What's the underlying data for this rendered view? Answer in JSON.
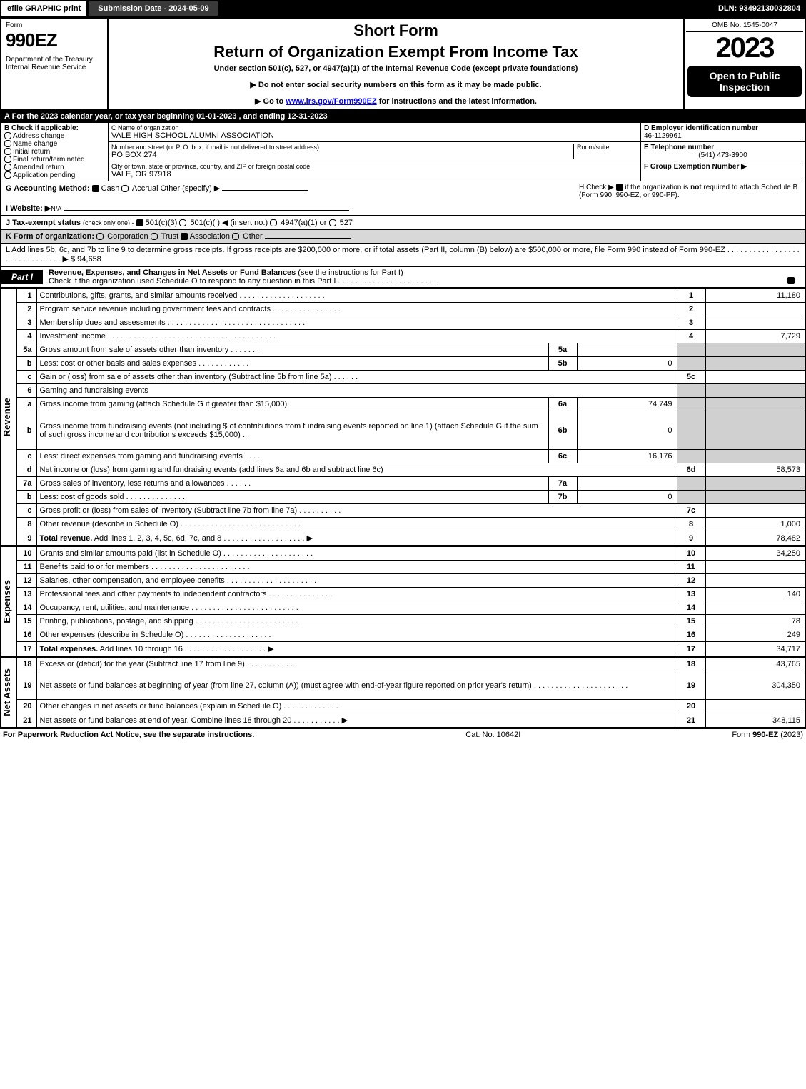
{
  "topbar": {
    "efile": "efile GRAPHIC print",
    "subdate": "Submission Date - 2024-05-09",
    "dln": "DLN: 93492130032804"
  },
  "header": {
    "form_label": "Form",
    "form_number": "990EZ",
    "dept": "Department of the Treasury\nInternal Revenue Service",
    "short_form": "Short Form",
    "title": "Return of Organization Exempt From Income Tax",
    "subtitle": "Under section 501(c), 527, or 4947(a)(1) of the Internal Revenue Code (except private foundations)",
    "arrow1": "▶ Do not enter social security numbers on this form as it may be made public.",
    "arrow2_pre": "▶ Go to ",
    "arrow2_link": "www.irs.gov/Form990EZ",
    "arrow2_post": " for instructions and the latest information.",
    "omb": "OMB No. 1545-0047",
    "year": "2023",
    "open": "Open to Public Inspection"
  },
  "sectionA": "A  For the 2023 calendar year, or tax year beginning 01-01-2023 , and ending 12-31-2023",
  "sectionB": {
    "hdr": "B  Check if applicable:",
    "items": [
      "Address change",
      "Name change",
      "Initial return",
      "Final return/terminated",
      "Amended return",
      "Application pending"
    ]
  },
  "sectionC": {
    "name_lbl": "C Name of organization",
    "name_val": "VALE HIGH SCHOOL ALUMNI ASSOCIATION",
    "street_lbl": "Number and street (or P. O. box, if mail is not delivered to street address)",
    "room_lbl": "Room/suite",
    "street_val": "PO BOX 274",
    "city_lbl": "City or town, state or province, country, and ZIP or foreign postal code",
    "city_val": "VALE, OR  97918"
  },
  "sectionD": {
    "ein_lbl": "D Employer identification number",
    "ein_val": "46-1129961",
    "tel_lbl": "E Telephone number",
    "tel_val": "(541) 473-3900",
    "grp_lbl": "F Group Exemption Number  ▶"
  },
  "lineG": {
    "label": "G Accounting Method:",
    "cash": "Cash",
    "accrual": "Accrual",
    "other": "Other (specify) ▶"
  },
  "lineH": {
    "text1": "H  Check ▶ ",
    "text2": " if the organization is ",
    "not": "not",
    "text3": " required to attach Schedule B",
    "text4": "(Form 990, 990-EZ, or 990-PF)."
  },
  "lineI": {
    "label": "I Website: ▶",
    "val": "N/A"
  },
  "lineJ": {
    "label": "J Tax-exempt status",
    "sub": "(check only one) -",
    "o1": "501(c)(3)",
    "o2": "501(c)(  ) ◀ (insert no.)",
    "o3": "4947(a)(1) or",
    "o4": "527"
  },
  "lineK": {
    "label": "K Form of organization:",
    "opts": [
      "Corporation",
      "Trust",
      "Association",
      "Other"
    ]
  },
  "lineL": {
    "text1": "L Add lines 5b, 6c, and 7b to line 9 to determine gross receipts. If gross receipts are $200,000 or more, or if total assets (Part II, column (B) below) are $500,000 or more, file Form 990 instead of Form 990-EZ",
    "dots": ". . . . . . . . . . . . . . . . . . . . . . . . . . . . . . ▶ $",
    "val": "94,658"
  },
  "partI": {
    "num": "Part I",
    "title": "Revenue, Expenses, and Changes in Net Assets or Fund Balances",
    "paren": "(see the instructions for Part I)",
    "check": "Check if the organization used Schedule O to respond to any question in this Part I . . . . . . . . . . . . . . . . . . . . . . ."
  },
  "vert": {
    "rev": "Revenue",
    "exp": "Expenses",
    "na": "Net Assets"
  },
  "rows": [
    {
      "n": "1",
      "d": "Contributions, gifts, grants, and similar amounts received . . . . . . . . . . . . . . . . . . . .",
      "rn": "1",
      "amt": "11,180"
    },
    {
      "n": "2",
      "d": "Program service revenue including government fees and contracts . . . . . . . . . . . . . . . .",
      "rn": "2",
      "amt": ""
    },
    {
      "n": "3",
      "d": "Membership dues and assessments . . . . . . . . . . . . . . . . . . . . . . . . . . . . . . . .",
      "rn": "3",
      "amt": ""
    },
    {
      "n": "4",
      "d": "Investment income . . . . . . . . . . . . . . . . . . . . . . . . . . . . . . . . . . . . . . .",
      "rn": "4",
      "amt": "7,729"
    },
    {
      "n": "5a",
      "d": "Gross amount from sale of assets other than inventory . . . . . . .",
      "sl": "5a",
      "sv": "",
      "grey": true
    },
    {
      "n": "b",
      "d": "Less: cost or other basis and sales expenses . . . . . . . . . . . .",
      "sl": "5b",
      "sv": "0",
      "grey": true
    },
    {
      "n": "c",
      "d": "Gain or (loss) from sale of assets other than inventory (Subtract line 5b from line 5a) . . . . . .",
      "rn": "5c",
      "amt": ""
    },
    {
      "n": "6",
      "d": "Gaming and fundraising events",
      "grey": true,
      "nosub": true
    },
    {
      "n": "a",
      "d": "Gross income from gaming (attach Schedule G if greater than $15,000)",
      "sl": "6a",
      "sv": "74,749",
      "grey": true
    },
    {
      "n": "b",
      "d": "Gross income from fundraising events (not including $                       of contributions from fundraising events reported on line 1) (attach Schedule G if the sum of such gross income and contributions exceeds $15,000)   .  .",
      "sl": "6b",
      "sv": "0",
      "grey": true,
      "tall": true
    },
    {
      "n": "c",
      "d": "Less: direct expenses from gaming and fundraising events   . . . .",
      "sl": "6c",
      "sv": "16,176",
      "grey": true
    },
    {
      "n": "d",
      "d": "Net income or (loss) from gaming and fundraising events (add lines 6a and 6b and subtract line 6c)",
      "rn": "6d",
      "amt": "58,573"
    },
    {
      "n": "7a",
      "d": "Gross sales of inventory, less returns and allowances . . . . . .",
      "sl": "7a",
      "sv": "",
      "grey": true
    },
    {
      "n": "b",
      "d": "Less: cost of goods sold     .  .  .  .  .  .  .  .  .  .  .  .  .  .",
      "sl": "7b",
      "sv": "0",
      "grey": true
    },
    {
      "n": "c",
      "d": "Gross profit or (loss) from sales of inventory (Subtract line 7b from line 7a) . . . . . . . . . .",
      "rn": "7c",
      "amt": ""
    },
    {
      "n": "8",
      "d": "Other revenue (describe in Schedule O) . . . . . . . . . . . . . . . . . . . . . . . . . . . .",
      "rn": "8",
      "amt": "1,000"
    },
    {
      "n": "9",
      "d": "Total revenue. Add lines 1, 2, 3, 4, 5c, 6d, 7c, and 8  . . . . . . . . . . . . . . . . . . .  ▶",
      "rn": "9",
      "amt": "78,482",
      "bold": true
    }
  ],
  "rows_exp": [
    {
      "n": "10",
      "d": "Grants and similar amounts paid (list in Schedule O) . . . . . . . . . . . . . . . . . . . . .",
      "rn": "10",
      "amt": "34,250"
    },
    {
      "n": "11",
      "d": "Benefits paid to or for members   .  .  .  .  .  .  .  .  .  .  .  .  .  .  .  .  .  .  .  .  .  .  .",
      "rn": "11",
      "amt": ""
    },
    {
      "n": "12",
      "d": "Salaries, other compensation, and employee benefits . . . . . . . . . . . . . . . . . . . . .",
      "rn": "12",
      "amt": ""
    },
    {
      "n": "13",
      "d": "Professional fees and other payments to independent contractors . . . . . . . . . . . . . . .",
      "rn": "13",
      "amt": "140"
    },
    {
      "n": "14",
      "d": "Occupancy, rent, utilities, and maintenance . . . . . . . . . . . . . . . . . . . . . . . . .",
      "rn": "14",
      "amt": ""
    },
    {
      "n": "15",
      "d": "Printing, publications, postage, and shipping . . . . . . . . . . . . . . . . . . . . . . . .",
      "rn": "15",
      "amt": "78"
    },
    {
      "n": "16",
      "d": "Other expenses (describe in Schedule O)   .  .  .  .  .  .  .  .  .  .  .  .  .  .  .  .  .  .  .  .",
      "rn": "16",
      "amt": "249"
    },
    {
      "n": "17",
      "d": "Total expenses. Add lines 10 through 16   .  .  .  .  .  .  .  .  .  .  .  .  .  .  .  .  .  .  .  ▶",
      "rn": "17",
      "amt": "34,717",
      "bold": true
    }
  ],
  "rows_na": [
    {
      "n": "18",
      "d": "Excess or (deficit) for the year (Subtract line 17 from line 9)     .  .  .  .  .  .  .  .  .  .  .  .",
      "rn": "18",
      "amt": "43,765"
    },
    {
      "n": "19",
      "d": "Net assets or fund balances at beginning of year (from line 27, column (A)) (must agree with end-of-year figure reported on prior year's return) . . . . . . . . . . . . . . . . . . . . . .",
      "rn": "19",
      "amt": "304,350",
      "tall": true
    },
    {
      "n": "20",
      "d": "Other changes in net assets or fund balances (explain in Schedule O) . . . . . . . . . . . . .",
      "rn": "20",
      "amt": ""
    },
    {
      "n": "21",
      "d": "Net assets or fund balances at end of year. Combine lines 18 through 20 . . . . . . . . . . . ▶",
      "rn": "21",
      "amt": "348,115"
    }
  ],
  "footer": {
    "l": "For Paperwork Reduction Act Notice, see the separate instructions.",
    "m": "Cat. No. 10642I",
    "r_pre": "Form ",
    "r_b": "990-EZ",
    "r_post": " (2023)"
  }
}
